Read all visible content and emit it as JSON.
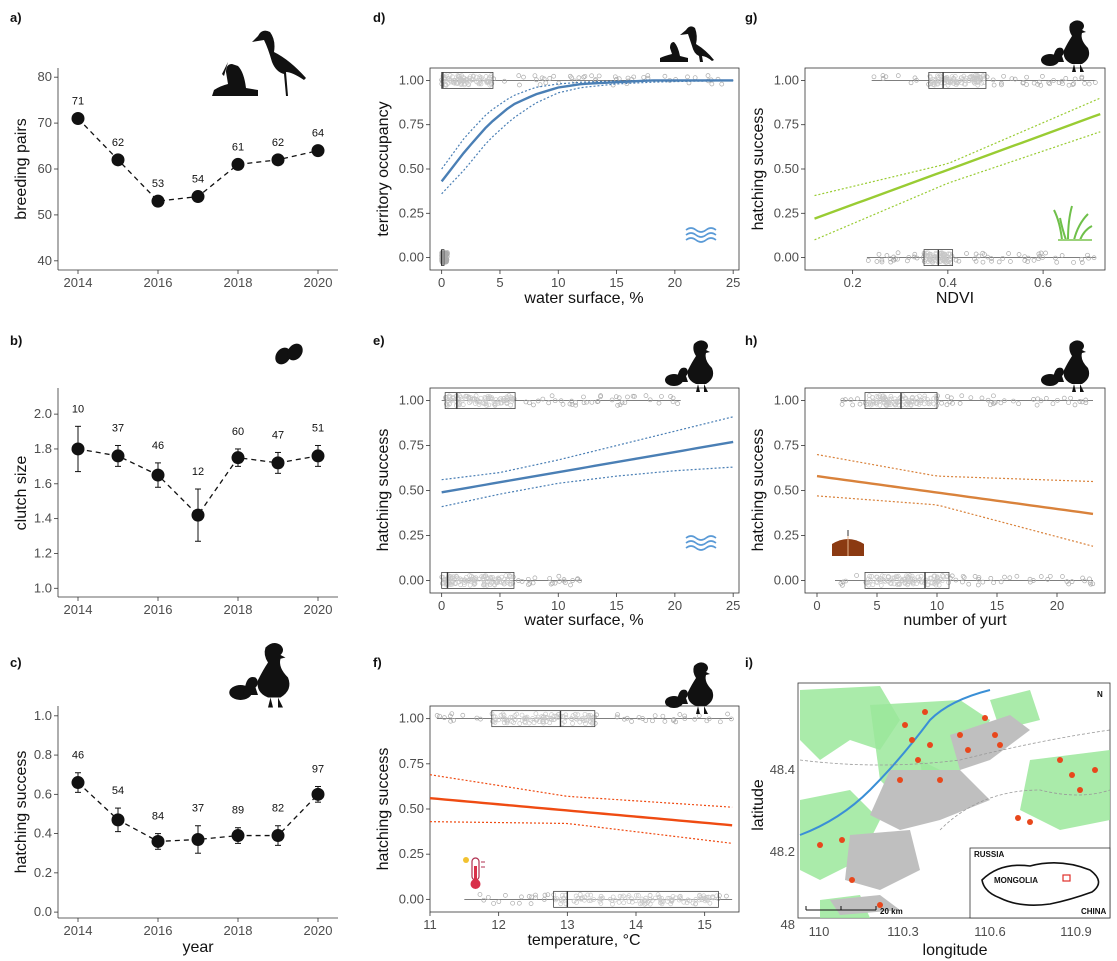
{
  "panel_labels": {
    "a": "a)",
    "b": "b)",
    "c": "c)",
    "d": "d)",
    "e": "e)",
    "f": "f)",
    "g": "g)",
    "h": "h)",
    "i": "i)"
  },
  "icons": [
    "pelican-crane-silhouette-icon",
    "eggs-icon",
    "hen-chick-eggs-icon",
    "water-waves-icon",
    "grass-icon",
    "yurt-icon",
    "thermometer-icon"
  ],
  "colors": {
    "blue": "#4a7fb5",
    "green": "#99cc33",
    "orange": "#d9823b",
    "red": "#ef4b12",
    "wave": "#5a9ad6",
    "map_green": "#9be79b",
    "map_gray": "#bfbfbf",
    "map_red": "#e8471c"
  },
  "chart_data": [
    {
      "id": "a",
      "type": "line",
      "xlabel": "",
      "ylabel": "breeding pairs",
      "x": [
        2014,
        2015,
        2016,
        2017,
        2018,
        2019,
        2020
      ],
      "y": [
        71,
        62,
        53,
        54,
        61,
        62,
        64
      ],
      "labels": [
        "71",
        "62",
        "53",
        "54",
        "61",
        "62",
        "64"
      ],
      "xlim": [
        2014,
        2020
      ],
      "ylim": [
        38,
        82
      ],
      "xticks": [
        2014,
        2016,
        2018,
        2020
      ],
      "yticks": [
        40,
        50,
        60,
        70,
        80
      ],
      "ytick_labels": [
        "40",
        "50",
        "60",
        "70",
        "80"
      ]
    },
    {
      "id": "b",
      "type": "line",
      "xlabel": "",
      "ylabel": "clutch size",
      "x": [
        2014,
        2015,
        2016,
        2017,
        2018,
        2019,
        2020
      ],
      "y": [
        1.8,
        1.76,
        1.65,
        1.42,
        1.75,
        1.72,
        1.76
      ],
      "err": [
        0.13,
        0.06,
        0.07,
        0.15,
        0.05,
        0.06,
        0.06
      ],
      "labels": [
        "10",
        "37",
        "46",
        "12",
        "60",
        "47",
        "51"
      ],
      "xlim": [
        2014,
        2020
      ],
      "ylim": [
        0.95,
        2.15
      ],
      "xticks": [
        2014,
        2016,
        2018,
        2020
      ],
      "yticks": [
        1.0,
        1.2,
        1.4,
        1.6,
        1.8,
        2.0
      ],
      "ytick_labels": [
        "1.0",
        "1.2",
        "1.4",
        "1.6",
        "1.8",
        "2.0"
      ]
    },
    {
      "id": "c",
      "type": "line",
      "xlabel": "year",
      "ylabel": "hatching success",
      "x": [
        2014,
        2015,
        2016,
        2017,
        2018,
        2019,
        2020
      ],
      "y": [
        0.66,
        0.47,
        0.36,
        0.37,
        0.39,
        0.39,
        0.6
      ],
      "err": [
        0.05,
        0.06,
        0.04,
        0.07,
        0.04,
        0.05,
        0.04
      ],
      "labels": [
        "46",
        "54",
        "84",
        "37",
        "89",
        "82",
        "97"
      ],
      "xlim": [
        2014,
        2020
      ],
      "ylim": [
        -0.03,
        1.05
      ],
      "xticks": [
        2014,
        2016,
        2018,
        2020
      ],
      "yticks": [
        0.0,
        0.2,
        0.4,
        0.6,
        0.8,
        1.0
      ],
      "ytick_labels": [
        "0.0",
        "0.2",
        "0.4",
        "0.6",
        "0.8",
        "1.0"
      ]
    },
    {
      "id": "d",
      "type": "line",
      "kind": "logistic",
      "color": "blue",
      "xlabel": "water surface, %",
      "ylabel": "territory occupancy",
      "fit_x": [
        0,
        2,
        4,
        6,
        8,
        10,
        12,
        15,
        18,
        21,
        25
      ],
      "fit": [
        0.43,
        0.6,
        0.75,
        0.86,
        0.92,
        0.96,
        0.98,
        0.99,
        1.0,
        1.0,
        1.0
      ],
      "lower": [
        0.36,
        0.5,
        0.66,
        0.78,
        0.87,
        0.93,
        0.96,
        0.98,
        0.99,
        0.995,
        0.998
      ],
      "upper": [
        0.5,
        0.68,
        0.82,
        0.91,
        0.96,
        0.98,
        0.99,
        0.997,
        1.0,
        1.0,
        1.0
      ],
      "box_top": {
        "y": 1,
        "q1": 0,
        "med": 0.1,
        "q3": 4.4,
        "min": 0,
        "max": 25
      },
      "box_bottom": {
        "y": 0,
        "q1": 0,
        "med": 0,
        "q3": 0.2,
        "min": 0,
        "max": 0.5
      },
      "xlim": [
        -1,
        25.5
      ],
      "ylim": [
        -0.07,
        1.07
      ],
      "xticks": [
        0,
        5,
        10,
        15,
        20,
        25
      ],
      "yticks": [
        0,
        0.25,
        0.5,
        0.75,
        1
      ],
      "ytick_labels": [
        "0.00",
        "0.25",
        "0.50",
        "0.75",
        "1.00"
      ]
    },
    {
      "id": "e",
      "type": "line",
      "color": "blue",
      "xlabel": "water surface, %",
      "ylabel": "hatching success",
      "fit_x": [
        0,
        25
      ],
      "fit": [
        0.49,
        0.77
      ],
      "lower_x": [
        0,
        5,
        10,
        15,
        20,
        25
      ],
      "lower": [
        0.41,
        0.48,
        0.54,
        0.58,
        0.61,
        0.63
      ],
      "upper": [
        0.56,
        0.6,
        0.67,
        0.75,
        0.83,
        0.91
      ],
      "box_top": {
        "y": 1,
        "q1": 0.3,
        "med": 1.3,
        "q3": 6.3,
        "min": 0,
        "max": 20.5
      },
      "box_bottom": {
        "y": 0,
        "q1": 0,
        "med": 0.5,
        "q3": 6.2,
        "min": 0,
        "max": 12
      },
      "xlim": [
        -1,
        25.5
      ],
      "ylim": [
        -0.07,
        1.07
      ],
      "xticks": [
        0,
        5,
        10,
        15,
        20,
        25
      ],
      "yticks": [
        0,
        0.25,
        0.5,
        0.75,
        1
      ],
      "ytick_labels": [
        "0.00",
        "0.25",
        "0.50",
        "0.75",
        "1.00"
      ]
    },
    {
      "id": "f",
      "type": "line",
      "color": "red",
      "xlabel": "temperature, °C",
      "ylabel": "hatching success",
      "fit_x": [
        11,
        15.4
      ],
      "fit": [
        0.56,
        0.41
      ],
      "lower_x": [
        11,
        13,
        15.4
      ],
      "lower": [
        0.43,
        0.42,
        0.31
      ],
      "upper": [
        0.69,
        0.57,
        0.51
      ],
      "box_top": {
        "y": 1,
        "q1": 11.9,
        "med": 12.9,
        "q3": 13.4,
        "min": 11.1,
        "max": 15.4
      },
      "box_bottom": {
        "y": 0,
        "q1": 12.8,
        "med": 13.0,
        "q3": 15.2,
        "min": 11.5,
        "max": 15.4
      },
      "xlim": [
        11,
        15.5
      ],
      "ylim": [
        -0.07,
        1.07
      ],
      "xticks": [
        11,
        12,
        13,
        14,
        15
      ],
      "yticks": [
        0,
        0.25,
        0.5,
        0.75,
        1
      ],
      "ytick_labels": [
        "0.00",
        "0.25",
        "0.50",
        "0.75",
        "1.00"
      ]
    },
    {
      "id": "g",
      "type": "line",
      "color": "green",
      "xlabel": "NDVI",
      "ylabel": "hatching success",
      "fit_x": [
        0.12,
        0.72
      ],
      "fit": [
        0.22,
        0.81
      ],
      "lower_x": [
        0.12,
        0.4,
        0.72
      ],
      "lower": [
        0.1,
        0.42,
        0.71
      ],
      "upper": [
        0.35,
        0.53,
        0.9
      ],
      "box_top": {
        "y": 1,
        "q1": 0.36,
        "med": 0.39,
        "q3": 0.48,
        "min": 0.24,
        "max": 0.71
      },
      "box_bottom": {
        "y": 0,
        "q1": 0.35,
        "med": 0.38,
        "q3": 0.41,
        "min": 0.23,
        "max": 0.71
      },
      "xlim": [
        0.1,
        0.73
      ],
      "ylim": [
        -0.07,
        1.07
      ],
      "xticks": [
        0.2,
        0.4,
        0.6
      ],
      "yticks": [
        0,
        0.25,
        0.5,
        0.75,
        1
      ],
      "ytick_labels": [
        "0.00",
        "0.25",
        "0.50",
        "0.75",
        "1.00"
      ]
    },
    {
      "id": "h",
      "type": "line",
      "color": "orange",
      "xlabel": "number of yurt",
      "ylabel": "hatching success",
      "fit_x": [
        0,
        23
      ],
      "fit": [
        0.58,
        0.37
      ],
      "lower_x": [
        0,
        10,
        23
      ],
      "lower": [
        0.47,
        0.42,
        0.19
      ],
      "upper": [
        0.7,
        0.58,
        0.55
      ],
      "box_top": {
        "y": 1,
        "q1": 4,
        "med": 7,
        "q3": 10,
        "min": 2,
        "max": 23
      },
      "box_bottom": {
        "y": 0,
        "q1": 4,
        "med": 9,
        "q3": 11,
        "min": 1.5,
        "max": 23
      },
      "xlim": [
        -1,
        24
      ],
      "ylim": [
        -0.07,
        1.07
      ],
      "xticks": [
        0,
        5,
        10,
        15,
        20
      ],
      "yticks": [
        0,
        0.25,
        0.5,
        0.75,
        1
      ],
      "ytick_labels": [
        "0.00",
        "0.25",
        "0.50",
        "0.75",
        "1.00"
      ]
    }
  ],
  "map": {
    "xlabel": "longitude",
    "ylabel": "latitude",
    "xticks": [
      "110",
      "110.3",
      "110.6",
      "110.9"
    ],
    "yticks": [
      "48.4",
      "48.2",
      "48"
    ],
    "scale_label": "20 km",
    "inset_country": "MONGOLIA",
    "inset_north": "RUSSIA",
    "inset_south": "CHINA",
    "north_label": "N"
  }
}
